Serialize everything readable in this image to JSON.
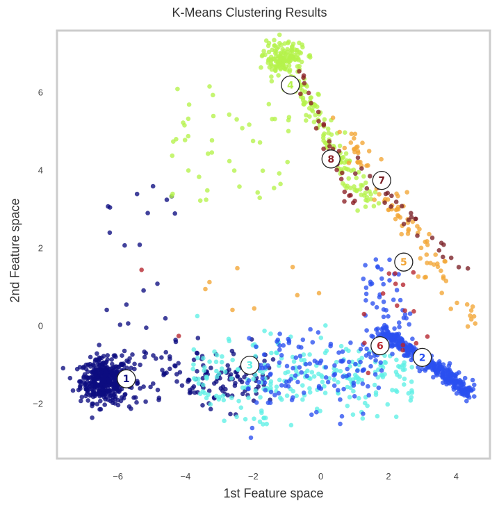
{
  "chart_data": {
    "type": "scatter",
    "title": "K-Means Clustering Results",
    "xlabel": "1st Feature space",
    "ylabel": "2nd Feature space",
    "xlim": [
      -7.8,
      5.0
    ],
    "ylim": [
      -3.4,
      7.6
    ],
    "xticks": [
      -6,
      -4,
      -2,
      0,
      2,
      4
    ],
    "yticks": [
      -2,
      0,
      2,
      4,
      6
    ],
    "grid": false,
    "legend": "none",
    "clusters": [
      {
        "label": "1",
        "color": "#0d0d80",
        "centroid": [
          -5.75,
          -1.35
        ]
      },
      {
        "label": "2",
        "color": "#2a4ff0",
        "centroid": [
          3.0,
          -0.8
        ]
      },
      {
        "label": "3",
        "color": "#5ff0e6",
        "centroid": [
          -2.1,
          -1.0
        ]
      },
      {
        "label": "4",
        "color": "#b5f24a",
        "centroid": [
          -0.9,
          6.2
        ]
      },
      {
        "label": "5",
        "color": "#f2a535",
        "centroid": [
          2.45,
          1.65
        ]
      },
      {
        "label": "6",
        "color": "#b5232c",
        "centroid": [
          1.75,
          -0.5
        ]
      },
      {
        "label": "7",
        "color": "#7a1f25",
        "centroid": [
          1.8,
          3.75
        ]
      },
      {
        "label": "8",
        "color": "#8a1f25",
        "centroid": [
          0.3,
          4.3
        ]
      }
    ]
  }
}
